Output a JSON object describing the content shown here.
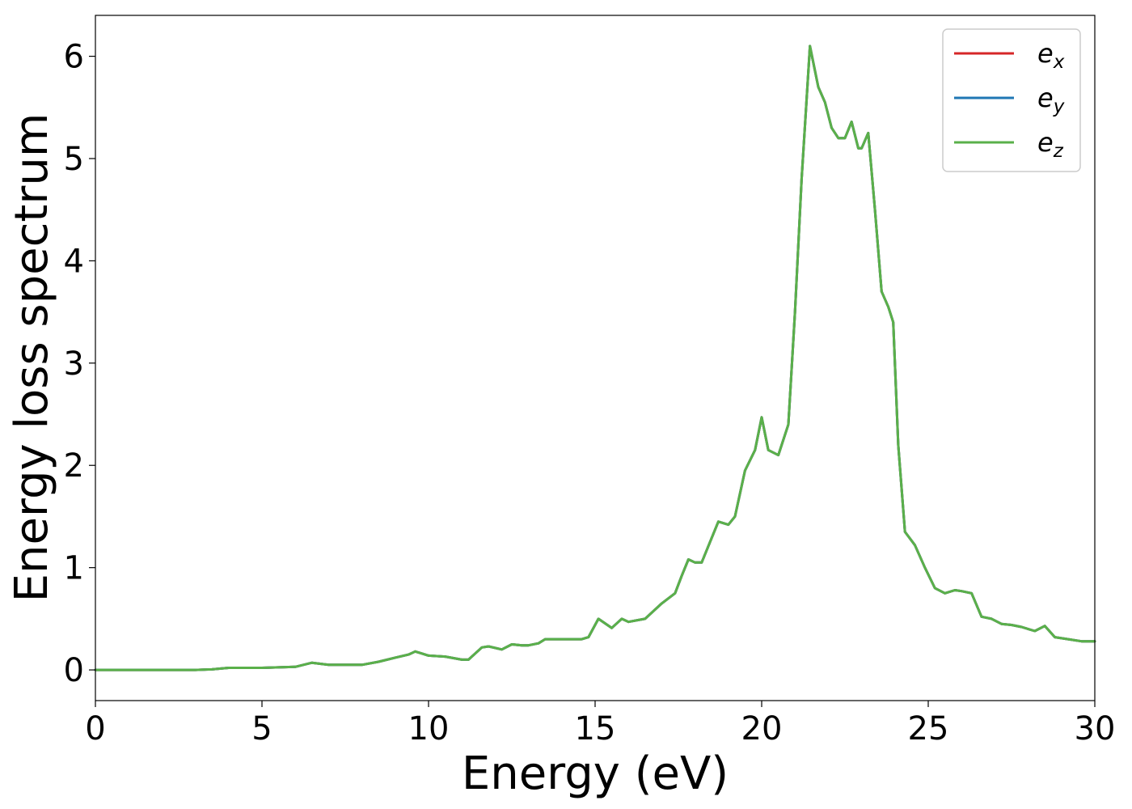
{
  "chart_data": {
    "type": "line",
    "title": "",
    "xlabel": "Energy (eV)",
    "ylabel": "Energy loss spectrum",
    "xlim": [
      0,
      30
    ],
    "ylim": [
      -0.3,
      6.4
    ],
    "xticks": [
      0,
      5,
      10,
      15,
      20,
      25,
      30
    ],
    "yticks": [
      0,
      1,
      2,
      3,
      4,
      5,
      6
    ],
    "grid": false,
    "legend_position": "top-right",
    "x": [
      0,
      1,
      2,
      3,
      3.5,
      4,
      5,
      6,
      6.5,
      7,
      7.5,
      8,
      8.5,
      9,
      9.4,
      9.6,
      9.8,
      10,
      10.5,
      11,
      11.2,
      11.6,
      11.8,
      12.2,
      12.5,
      12.8,
      13,
      13.3,
      13.5,
      13.8,
      14,
      14.3,
      14.6,
      14.8,
      15.1,
      15.5,
      15.8,
      16,
      16.5,
      17,
      17.4,
      17.6,
      17.8,
      18,
      18.2,
      18.7,
      19,
      19.2,
      19.5,
      19.8,
      20,
      20.2,
      20.5,
      20.8,
      21,
      21.2,
      21.45,
      21.7,
      21.9,
      22.1,
      22.3,
      22.5,
      22.7,
      22.9,
      23.0,
      23.2,
      23.4,
      23.6,
      23.8,
      23.95,
      24.1,
      24.3,
      24.6,
      24.9,
      25.2,
      25.5,
      25.8,
      26.0,
      26.3,
      26.6,
      26.9,
      27.2,
      27.5,
      27.8,
      28.2,
      28.5,
      28.8,
      29.2,
      29.6,
      30
    ],
    "series": [
      {
        "name": "e_x",
        "color": "#d62728",
        "values": [
          0,
          0,
          0,
          0,
          0.005,
          0.02,
          0.02,
          0.03,
          0.07,
          0.05,
          0.05,
          0.05,
          0.08,
          0.12,
          0.15,
          0.18,
          0.16,
          0.14,
          0.13,
          0.1,
          0.1,
          0.22,
          0.23,
          0.2,
          0.25,
          0.24,
          0.24,
          0.26,
          0.3,
          0.3,
          0.3,
          0.3,
          0.3,
          0.32,
          0.5,
          0.41,
          0.5,
          0.47,
          0.5,
          0.65,
          0.75,
          0.92,
          1.08,
          1.05,
          1.05,
          1.45,
          1.42,
          1.5,
          1.95,
          2.15,
          2.47,
          2.15,
          2.1,
          2.4,
          3.5,
          4.8,
          6.1,
          5.7,
          5.55,
          5.3,
          5.2,
          5.2,
          5.36,
          5.1,
          5.1,
          5.25,
          4.5,
          3.7,
          3.55,
          3.4,
          2.2,
          1.35,
          1.22,
          1.0,
          0.8,
          0.75,
          0.78,
          0.77,
          0.75,
          0.52,
          0.5,
          0.45,
          0.44,
          0.42,
          0.38,
          0.43,
          0.32,
          0.3,
          0.28,
          0.28
        ]
      },
      {
        "name": "e_y",
        "color": "#1f77b4",
        "values": [
          0,
          0,
          0,
          0,
          0.005,
          0.02,
          0.02,
          0.03,
          0.07,
          0.05,
          0.05,
          0.05,
          0.08,
          0.12,
          0.15,
          0.18,
          0.16,
          0.14,
          0.13,
          0.1,
          0.1,
          0.22,
          0.23,
          0.2,
          0.25,
          0.24,
          0.24,
          0.26,
          0.3,
          0.3,
          0.3,
          0.3,
          0.3,
          0.32,
          0.5,
          0.41,
          0.5,
          0.47,
          0.5,
          0.65,
          0.75,
          0.92,
          1.08,
          1.05,
          1.05,
          1.45,
          1.42,
          1.5,
          1.95,
          2.15,
          2.47,
          2.15,
          2.1,
          2.4,
          3.5,
          4.8,
          6.1,
          5.7,
          5.55,
          5.3,
          5.2,
          5.2,
          5.36,
          5.1,
          5.1,
          5.25,
          4.5,
          3.7,
          3.55,
          3.4,
          2.2,
          1.35,
          1.22,
          1.0,
          0.8,
          0.75,
          0.78,
          0.77,
          0.75,
          0.52,
          0.5,
          0.45,
          0.44,
          0.42,
          0.38,
          0.43,
          0.32,
          0.3,
          0.28,
          0.28
        ]
      },
      {
        "name": "e_z",
        "color": "#5ab04a",
        "values": [
          0,
          0,
          0,
          0,
          0.005,
          0.02,
          0.02,
          0.03,
          0.07,
          0.05,
          0.05,
          0.05,
          0.08,
          0.12,
          0.15,
          0.18,
          0.16,
          0.14,
          0.13,
          0.1,
          0.1,
          0.22,
          0.23,
          0.2,
          0.25,
          0.24,
          0.24,
          0.26,
          0.3,
          0.3,
          0.3,
          0.3,
          0.3,
          0.32,
          0.5,
          0.41,
          0.5,
          0.47,
          0.5,
          0.65,
          0.75,
          0.92,
          1.08,
          1.05,
          1.05,
          1.45,
          1.42,
          1.5,
          1.95,
          2.15,
          2.47,
          2.15,
          2.1,
          2.4,
          3.5,
          4.8,
          6.1,
          5.7,
          5.55,
          5.3,
          5.2,
          5.2,
          5.36,
          5.1,
          5.1,
          5.25,
          4.5,
          3.7,
          3.55,
          3.4,
          2.2,
          1.35,
          1.22,
          1.0,
          0.8,
          0.75,
          0.78,
          0.77,
          0.75,
          0.52,
          0.5,
          0.45,
          0.44,
          0.42,
          0.38,
          0.43,
          0.32,
          0.3,
          0.28,
          0.28
        ]
      }
    ],
    "legend": [
      {
        "base": "e",
        "sub": "x",
        "color": "#d62728"
      },
      {
        "base": "e",
        "sub": "y",
        "color": "#1f77b4"
      },
      {
        "base": "e",
        "sub": "z",
        "color": "#5ab04a"
      }
    ]
  }
}
